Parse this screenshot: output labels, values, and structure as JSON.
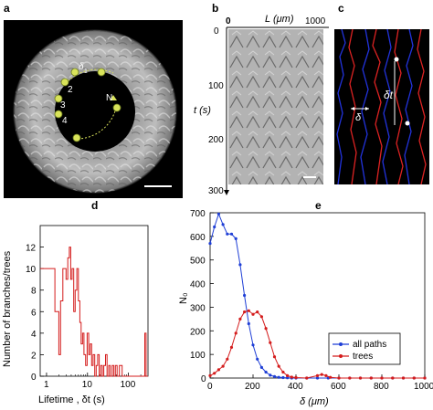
{
  "panels": {
    "a": {
      "letter": "a",
      "labels": [
        "δ",
        "1",
        "2",
        "3",
        "4",
        "N"
      ]
    },
    "b": {
      "letter": "b",
      "x_label": "L (μm)",
      "x_ticks": [
        "0",
        "1000"
      ],
      "y_label": "t (s)",
      "y_ticks": [
        "0",
        "100",
        "200",
        "300"
      ]
    },
    "c": {
      "letter": "c",
      "delta_label": "δ",
      "delta_t_label": "δt"
    },
    "d": {
      "letter": "d",
      "ylabel": "Number of branches/trees",
      "xlabel": "Lifetime , δt (s)",
      "x_ticks": [
        "1",
        "10",
        "100"
      ],
      "y_ticks": [
        "0",
        "2",
        "4",
        "6",
        "8",
        "10",
        "12"
      ]
    },
    "e": {
      "letter": "e",
      "ylabel": "N₀",
      "xlabel": "δ (μm)",
      "x_ticks": [
        "0",
        "200",
        "400",
        "600",
        "800",
        "1000"
      ],
      "y_ticks": [
        "0",
        "100",
        "200",
        "300",
        "400",
        "500",
        "600",
        "700"
      ],
      "legend": [
        "all paths",
        "trees"
      ]
    }
  },
  "colors": {
    "all_paths": "#1f3fd6",
    "trees": "#d41c1c",
    "ring_marker": "#c8d84a"
  },
  "chart_data": [
    {
      "type": "line",
      "panel": "d",
      "x_scale": "log",
      "xlim": [
        0.7,
        300
      ],
      "ylim": [
        0,
        14
      ],
      "xlabel": "Lifetime , δt (s)",
      "ylabel": "Number of branches/trees",
      "series": [
        {
          "name": "",
          "color": "#d41c1c",
          "step": true,
          "x": [
            0.7,
            1.6,
            2.0,
            2.2,
            2.5,
            3.0,
            3.3,
            3.6,
            3.9,
            4.2,
            4.6,
            5.0,
            5.5,
            6.0,
            6.5,
            7.0,
            7.6,
            8.2,
            9.0,
            9.8,
            10.7,
            11.6,
            12.6,
            13.7,
            15,
            16.3,
            17.7,
            19.3,
            21,
            23,
            25,
            27.5,
            30,
            33,
            36,
            40,
            44,
            48,
            53,
            60,
            70,
            90,
            250,
            270
          ],
          "y": [
            10,
            6,
            2,
            7,
            10,
            9,
            11,
            12,
            9,
            10,
            6,
            8,
            10,
            7,
            5,
            3,
            4,
            2,
            1,
            4,
            2,
            3,
            1,
            2,
            0,
            1,
            2,
            0,
            1,
            0,
            1,
            2,
            0,
            1,
            0,
            1,
            0,
            1,
            0,
            1,
            0,
            0,
            4,
            0
          ]
        }
      ]
    },
    {
      "type": "line",
      "panel": "e",
      "xlim": [
        0,
        1000
      ],
      "ylim": [
        0,
        700
      ],
      "xlabel": "δ (μm)",
      "ylabel": "N₀",
      "legend_position": "lower-right",
      "series": [
        {
          "name": "all paths",
          "color": "#1f3fd6",
          "x": [
            0,
            20,
            40,
            60,
            80,
            100,
            120,
            140,
            160,
            180,
            200,
            220,
            240,
            260,
            280,
            300,
            320,
            340,
            360,
            380,
            400,
            450,
            500,
            550,
            600,
            650,
            700,
            750,
            800,
            850,
            900,
            950,
            1000
          ],
          "y": [
            570,
            640,
            695,
            650,
            610,
            610,
            590,
            480,
            350,
            230,
            140,
            80,
            45,
            25,
            12,
            6,
            3,
            2,
            1,
            0,
            0,
            0,
            0,
            0,
            0,
            0,
            0,
            0,
            0,
            0,
            0,
            0,
            0
          ]
        },
        {
          "name": "trees",
          "color": "#d41c1c",
          "x": [
            0,
            20,
            40,
            60,
            80,
            100,
            120,
            140,
            160,
            180,
            200,
            220,
            240,
            260,
            280,
            300,
            320,
            340,
            360,
            380,
            400,
            450,
            500,
            520,
            540,
            560,
            600,
            650,
            700,
            750,
            800,
            850,
            900,
            950,
            1000
          ],
          "y": [
            10,
            20,
            35,
            50,
            80,
            130,
            190,
            250,
            280,
            285,
            270,
            280,
            260,
            210,
            150,
            90,
            50,
            25,
            10,
            4,
            2,
            0,
            10,
            15,
            10,
            3,
            0,
            0,
            0,
            0,
            0,
            0,
            0,
            0,
            0
          ]
        }
      ]
    }
  ]
}
